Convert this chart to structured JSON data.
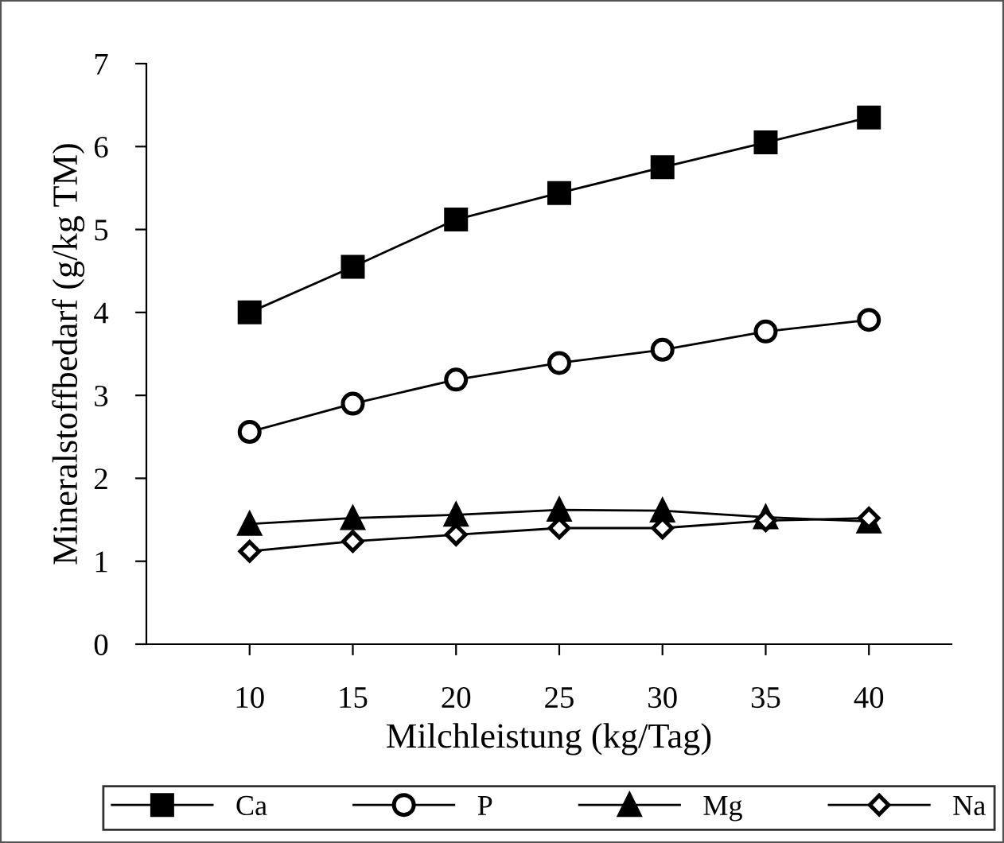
{
  "chart_data": {
    "type": "line",
    "xlabel": "Milchleistung (kg/Tag)",
    "ylabel": "Mineralstoffbedarf (g/kg TM)",
    "x": [
      10,
      15,
      20,
      25,
      30,
      35,
      40
    ],
    "xlim": [
      5,
      44
    ],
    "xticks": [
      10,
      15,
      20,
      25,
      30,
      35,
      40
    ],
    "ylim": [
      0,
      7
    ],
    "yticks": [
      0,
      1,
      2,
      3,
      4,
      5,
      6,
      7
    ],
    "grid": false,
    "legend": "bottom",
    "line_style": "solid",
    "series": [
      {
        "name": "Ca",
        "color": "#000000",
        "marker": "square",
        "values": [
          4.0,
          4.55,
          5.12,
          5.44,
          5.75,
          6.05,
          6.35
        ]
      },
      {
        "name": "P",
        "color": "#000000",
        "marker": "circle",
        "values": [
          2.56,
          2.9,
          3.19,
          3.39,
          3.55,
          3.77,
          3.91
        ]
      },
      {
        "name": "Mg",
        "color": "#000000",
        "marker": "triangle",
        "values": [
          1.45,
          1.52,
          1.56,
          1.62,
          1.61,
          1.53,
          1.48
        ]
      },
      {
        "name": "Na",
        "color": "#000000",
        "marker": "diamond",
        "values": [
          1.12,
          1.24,
          1.32,
          1.4,
          1.4,
          1.49,
          1.52
        ]
      }
    ]
  }
}
